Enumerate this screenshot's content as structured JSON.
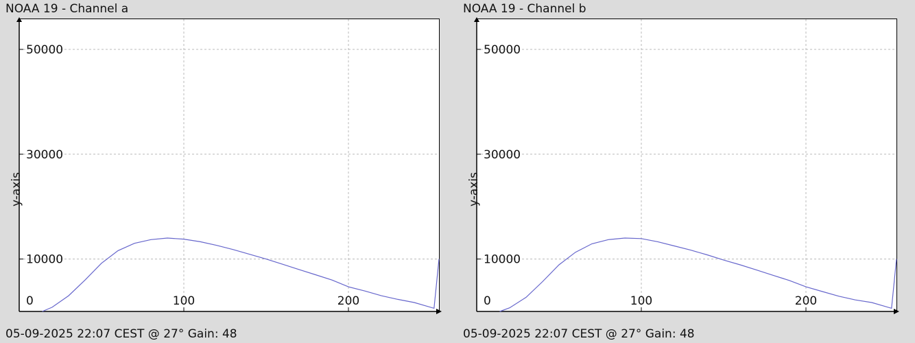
{
  "chart_data": [
    {
      "type": "line",
      "title": "NOAA 19 - Channel a",
      "ylabel": "y-axis",
      "xlabel": "",
      "footer": "05-09-2025 22:07 CEST @ 27° Gain: 48",
      "x_ticks": [
        0,
        100,
        200
      ],
      "y_ticks": [
        10000,
        30000,
        50000
      ],
      "xlim": [
        0,
        255
      ],
      "ylim": [
        0,
        55000
      ],
      "grid": true,
      "series": [
        {
          "color": "#6666cc",
          "x": [
            14,
            20,
            30,
            40,
            50,
            60,
            70,
            80,
            90,
            100,
            110,
            120,
            130,
            140,
            150,
            160,
            170,
            180,
            190,
            200,
            210,
            220,
            230,
            240,
            252,
            255
          ],
          "y": [
            0,
            800,
            3000,
            6000,
            9200,
            11600,
            13000,
            13700,
            14000,
            13800,
            13300,
            12600,
            11800,
            10900,
            10000,
            9000,
            8000,
            7000,
            6000,
            4700,
            3900,
            3000,
            2300,
            1700,
            600,
            10000
          ]
        }
      ]
    },
    {
      "type": "line",
      "title": "NOAA 19 - Channel b",
      "ylabel": "y-axis",
      "xlabel": "",
      "footer": "05-09-2025 22:07 CEST @ 27° Gain: 48",
      "x_ticks": [
        0,
        100,
        200
      ],
      "y_ticks": [
        10000,
        30000,
        50000
      ],
      "xlim": [
        0,
        255
      ],
      "ylim": [
        0,
        55000
      ],
      "grid": true,
      "series": [
        {
          "color": "#6666cc",
          "x": [
            14,
            20,
            30,
            40,
            50,
            60,
            70,
            80,
            90,
            100,
            110,
            120,
            130,
            140,
            150,
            160,
            170,
            180,
            190,
            200,
            210,
            220,
            230,
            240,
            252,
            255
          ],
          "y": [
            0,
            700,
            2700,
            5700,
            8900,
            11300,
            12900,
            13700,
            14000,
            13900,
            13300,
            12500,
            11700,
            10800,
            9800,
            8900,
            7900,
            6900,
            5900,
            4700,
            3800,
            2900,
            2200,
            1700,
            600,
            10000
          ]
        }
      ]
    }
  ]
}
